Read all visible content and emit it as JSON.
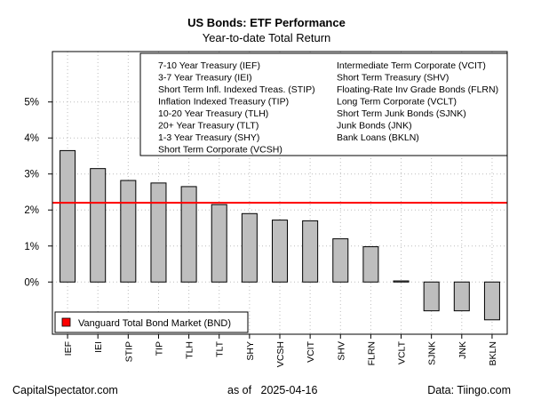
{
  "chart_data": {
    "type": "bar",
    "title": "US Bonds: ETF Performance",
    "subtitle": "Year-to-date Total Return",
    "categories": [
      "IEF",
      "IEI",
      "STIP",
      "TIP",
      "TLH",
      "TLT",
      "SHY",
      "VCSH",
      "VCIT",
      "SHV",
      "FLRN",
      "VCLT",
      "SJNK",
      "JNK",
      "BKLN"
    ],
    "values": [
      3.65,
      3.15,
      2.82,
      2.75,
      2.65,
      2.15,
      1.9,
      1.72,
      1.7,
      1.2,
      0.98,
      0.03,
      -0.8,
      -0.8,
      -1.05
    ],
    "y_ticks": [
      0,
      1,
      2,
      3,
      4,
      5
    ],
    "y_tick_labels": [
      "0%",
      "1%",
      "2%",
      "3%",
      "4%",
      "5%"
    ],
    "ylim": [
      -1.45,
      6.4
    ],
    "bar_color": "#bebebe",
    "reference_line": {
      "label": "Vanguard Total Bond Market (BND)",
      "value": 2.2,
      "color": "#ff0000"
    },
    "legend_entries": [
      "7-10 Year Treasury (IEF)",
      "3-7 Year Treasury (IEI)",
      "Short Term Infl. Indexed Treas. (STIP)",
      "Inflation Indexed Treasury (TIP)",
      "10-20 Year Treasury (TLH)",
      "20+ Year Treasury (TLT)",
      "1-3 Year Treasury (SHY)",
      "Short Term Corporate (VCSH)",
      "Intermediate Term Corporate (VCIT)",
      "Short Term Treasury (SHV)",
      "Floating-Rate Inv Grade Bonds (FLRN)",
      "Long Term Corporate (VCLT)",
      "Short Term Junk Bonds (SJNK)",
      "Junk Bonds (JNK)",
      "Bank Loans (BKLN)"
    ],
    "grid": true
  },
  "footer": {
    "source_left": "CapitalSpectator.com",
    "date_label": "as of   2025-04-16",
    "source_right": "Data: Tiingo.com"
  }
}
